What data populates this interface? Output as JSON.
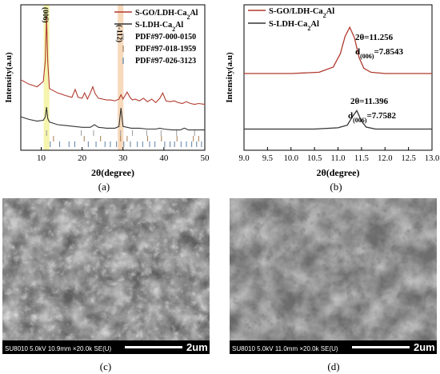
{
  "chart_data": [
    {
      "panel": "(a)",
      "type": "line",
      "xlabel": "2θ(degree)",
      "ylabel": "Intensity(a.u)",
      "xlim": [
        5,
        50
      ],
      "xticks": [
        10,
        20,
        30,
        40,
        50
      ],
      "series": [
        {
          "name": "S-GO/LDH-Ca2Al",
          "color": "#b03a2e",
          "x": [
            5,
            7,
            9,
            10.5,
            11.0,
            11.3,
            11.6,
            12,
            14,
            16,
            17.5,
            18.3,
            19,
            20,
            20.6,
            21.3,
            22,
            22.6,
            23.2,
            24,
            25,
            26,
            27,
            28,
            29,
            29.5,
            30,
            31,
            31.7,
            32.3,
            33,
            34,
            35,
            36,
            37,
            38,
            39,
            39.7,
            40.5,
            41.5,
            42.5,
            43.5,
            44.5,
            45.5,
            46.5,
            47.5,
            48.5,
            50
          ],
          "y": [
            8.0,
            7.5,
            7.2,
            7.8,
            10.2,
            15.2,
            10.0,
            7.0,
            6.5,
            6.2,
            6.0,
            6.9,
            6.0,
            5.9,
            6.5,
            5.8,
            6.5,
            7.2,
            6.4,
            5.9,
            5.8,
            5.7,
            5.7,
            5.6,
            5.8,
            6.3,
            5.8,
            6.6,
            6.0,
            5.7,
            5.8,
            5.6,
            5.9,
            5.5,
            5.8,
            5.4,
            5.9,
            6.5,
            5.6,
            5.5,
            5.6,
            5.4,
            5.3,
            5.5,
            5.3,
            5.2,
            5.3,
            5.2
          ]
        },
        {
          "name": "S-LDH-Ca2Al",
          "color": "#333333",
          "x": [
            5,
            7,
            9,
            10.5,
            11.0,
            11.3,
            11.6,
            12,
            14,
            16,
            18,
            20,
            22,
            23,
            24,
            26,
            28,
            29,
            29.5,
            30,
            31,
            32,
            34,
            36,
            38,
            39,
            40,
            42,
            44,
            45,
            46,
            48,
            50
          ],
          "y": [
            3.8,
            3.5,
            3.3,
            3.4,
            3.8,
            4.9,
            3.6,
            3.2,
            2.9,
            2.8,
            2.7,
            2.6,
            2.6,
            2.9,
            2.6,
            2.5,
            2.5,
            2.7,
            4.8,
            2.7,
            2.6,
            2.5,
            2.5,
            2.4,
            2.4,
            2.5,
            2.4,
            2.3,
            2.3,
            2.5,
            2.3,
            2.3,
            2.3
          ]
        }
      ],
      "reference_patterns": [
        {
          "name": "PDF#97-000-0150",
          "color": "#9a9a9a",
          "positions": [
            11.3,
            19.8,
            22.8,
            29.4,
            32.3,
            35.8,
            39.3,
            43.1,
            47.5
          ]
        },
        {
          "name": "PDF#97-018-1959",
          "color": "#a67c52",
          "positions": [
            13.0,
            20.5,
            24.5,
            29.4,
            31.0,
            36.0,
            39.4,
            43.2,
            47.2,
            48.5
          ]
        },
        {
          "name": "PDF#97-026-3123",
          "color": "#5b7fa6",
          "positions": [
            12.2,
            14.5,
            16.8,
            18.2,
            21.5,
            23.4,
            25.6,
            26.9,
            28.4,
            30.2,
            31.8,
            33.5,
            34.8,
            36.5,
            37.8,
            40.2,
            41.5,
            42.6,
            44.2,
            45.5,
            46.8,
            48.0,
            49.2
          ]
        }
      ],
      "annotations": [
        {
          "text": "(006)",
          "x": 11.3
        },
        {
          "text": "(-112)",
          "x": 29.4
        }
      ],
      "highlight_bands": [
        {
          "from": 10.6,
          "to": 12.0,
          "color": "#f3f3a0"
        },
        {
          "from": 28.7,
          "to": 30.1,
          "color": "#f6d2b0"
        }
      ],
      "legend_position": "top-right"
    },
    {
      "panel": "(b)",
      "type": "line",
      "xlabel": "2θ(degree)",
      "xlim": [
        9.0,
        13.0
      ],
      "xticks": [
        "9.0",
        "9.5",
        "10.0",
        "10.5",
        "11.0",
        "11.5",
        "12.0",
        "12.5",
        "13.0"
      ],
      "series": [
        {
          "name": "S-GO/LDH-Ca2Al",
          "color": "#b03a2e",
          "x": [
            9.0,
            10.0,
            10.6,
            10.9,
            11.05,
            11.15,
            11.25,
            11.35,
            11.45,
            11.55,
            11.7,
            12.0,
            12.5,
            13.0
          ],
          "y": [
            5.8,
            5.8,
            5.9,
            6.3,
            7.3,
            8.6,
            9.3,
            8.5,
            7.0,
            6.2,
            5.9,
            5.8,
            5.8,
            5.8
          ]
        },
        {
          "name": "S-LDH-Ca2Al",
          "color": "#333333",
          "x": [
            9.0,
            10.5,
            11.0,
            11.2,
            11.3,
            11.4,
            11.5,
            11.6,
            11.8,
            12.5,
            13.0
          ],
          "y": [
            1.6,
            1.6,
            1.7,
            1.9,
            2.5,
            3.0,
            2.2,
            1.75,
            1.6,
            1.6,
            1.6
          ]
        }
      ],
      "annotations": [
        {
          "line1": "2θ=11.256",
          "line2_prefix": "d",
          "line2_sub": "(006)",
          "line2_suffix": "=7.8543"
        },
        {
          "line1": "2θ=11.396",
          "line2_prefix": "d",
          "line2_sub": "(006)",
          "line2_suffix": "=7.7582"
        }
      ],
      "legend_position": "top-left"
    }
  ],
  "panels": {
    "a": {
      "caption": "(a)",
      "peak_006": "(006)",
      "peak_112": "(-112)",
      "legend": [
        {
          "base": "S-GO/LDH-Ca",
          "sub": "2",
          "tail": "Al"
        },
        {
          "base": "S-LDH-Ca",
          "sub": "2",
          "tail": "Al"
        }
      ],
      "pdf_legend": [
        "PDF#97-000-0150",
        "PDF#97-018-1959",
        "PDF#97-026-3123"
      ],
      "xlabel": "2θ(degree)",
      "ylabel": "Intensity(a.u)"
    },
    "b": {
      "caption": "(b)",
      "legend": [
        {
          "base": "S-GO/LDH-Ca",
          "sub": "2",
          "tail": "Al"
        },
        {
          "base": "S-LDH-Ca",
          "sub": "2",
          "tail": "Al"
        }
      ],
      "xlabel": "2θ(degree)",
      "ylabel": "Intensity(a.u)"
    },
    "c": {
      "caption": "(c)",
      "info": "SU8010 5.0kV 10.9mm ×20.0k SE(U)",
      "scale": "2um"
    },
    "d": {
      "caption": "(d)",
      "info": "SU8010 5.0kV 11.0mm ×20.0k SE(U)",
      "scale": "2um"
    }
  }
}
